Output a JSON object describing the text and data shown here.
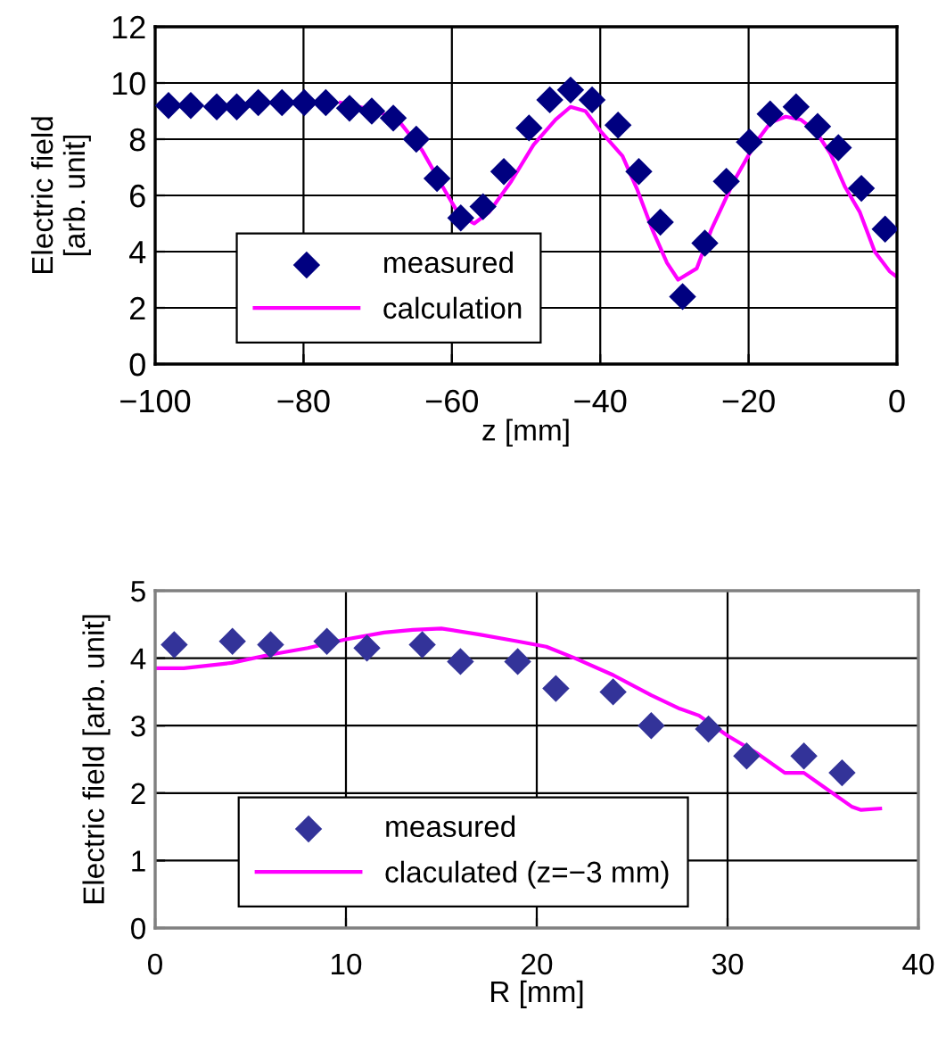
{
  "chart_data": [
    {
      "type": "scatter",
      "xlabel": "z [mm]",
      "ylabel": "Electric field\n[arb. unit]",
      "xlim": [
        -100,
        0
      ],
      "xticks": [
        -100,
        -80,
        -60,
        -40,
        -20,
        0
      ],
      "ylim": [
        0,
        12
      ],
      "yticks": [
        0,
        2,
        4,
        6,
        8,
        10,
        12
      ],
      "grid": true,
      "legend": "bottom left",
      "series": [
        {
          "name": "measured",
          "marker": "diamond",
          "color": "#000080",
          "x": [
            -98.2,
            -95.2,
            -91.7,
            -89.0,
            -86.1,
            -82.9,
            -79.9,
            -77.0,
            -73.8,
            -70.8,
            -67.9,
            -64.8,
            -62.0,
            -58.8,
            -55.8,
            -53.0,
            -49.6,
            -46.8,
            -44.0,
            -41.1,
            -37.6,
            -34.8,
            -31.9,
            -28.9,
            -25.9,
            -23.0,
            -19.9,
            -17.1,
            -13.6,
            -10.7,
            -7.9,
            -4.8,
            -1.6
          ],
          "values": [
            9.2,
            9.2,
            9.15,
            9.15,
            9.3,
            9.3,
            9.3,
            9.3,
            9.1,
            9.0,
            8.75,
            8.0,
            6.6,
            5.2,
            5.6,
            6.85,
            8.4,
            9.4,
            9.75,
            9.4,
            8.5,
            6.85,
            5.05,
            2.4,
            4.3,
            6.5,
            7.9,
            8.9,
            9.15,
            8.45,
            7.7,
            6.25,
            4.8
          ]
        },
        {
          "name": "calculation",
          "type": "line",
          "marker": "none",
          "color": "#ff00ff",
          "x": [
            -75,
            -70,
            -67,
            -64,
            -61,
            -59,
            -57,
            -55,
            -52,
            -49,
            -46,
            -44,
            -42,
            -40,
            -37,
            -35,
            -33,
            -31,
            -29.5,
            -27,
            -25,
            -22,
            -19,
            -17,
            -15,
            -13,
            -11,
            -9,
            -7,
            -5,
            -3,
            -1,
            0
          ],
          "values": [
            9.3,
            9.0,
            8.6,
            7.6,
            6.2,
            5.3,
            5.0,
            5.4,
            6.5,
            7.8,
            8.7,
            9.15,
            9.0,
            8.3,
            7.4,
            6.2,
            4.8,
            3.6,
            3.0,
            3.4,
            4.8,
            6.5,
            7.9,
            8.6,
            8.8,
            8.7,
            8.3,
            7.5,
            6.3,
            5.4,
            4.0,
            3.3,
            3.1
          ]
        }
      ]
    },
    {
      "type": "scatter",
      "xlabel": "R [mm]",
      "ylabel": "Electric field [arb. unit]",
      "xlim": [
        0,
        40
      ],
      "xticks": [
        0,
        10,
        20,
        30,
        40
      ],
      "ylim": [
        0,
        5
      ],
      "yticks": [
        0,
        1,
        2,
        3,
        4,
        5
      ],
      "grid": true,
      "legend": "bottom left",
      "series": [
        {
          "name": "measured",
          "marker": "diamond",
          "color": "#333399",
          "x": [
            1.0,
            4.05,
            6.05,
            9.0,
            11.1,
            14.0,
            16.0,
            19.0,
            21.0,
            24.0,
            26.0,
            29.0,
            31.0,
            34.0,
            36.0
          ],
          "values": [
            4.2,
            4.25,
            4.2,
            4.25,
            4.15,
            4.2,
            3.95,
            3.95,
            3.55,
            3.5,
            3.0,
            2.95,
            2.55,
            2.55,
            2.3
          ]
        },
        {
          "name": "claculated (z=−3 mm)",
          "type": "line",
          "marker": "none",
          "color": "#ff00ff",
          "x": [
            0,
            1.5,
            4,
            6,
            8,
            10,
            12,
            13.5,
            15,
            17,
            19,
            20.5,
            22,
            24,
            26,
            27.5,
            28.5,
            30,
            31.5,
            33,
            34,
            35,
            36.5,
            37,
            38
          ],
          "values": [
            3.85,
            3.85,
            3.93,
            4.05,
            4.15,
            4.28,
            4.38,
            4.42,
            4.44,
            4.35,
            4.25,
            4.17,
            4.0,
            3.75,
            3.45,
            3.25,
            3.15,
            2.85,
            2.6,
            2.3,
            2.3,
            2.1,
            1.8,
            1.75,
            1.77
          ]
        }
      ]
    }
  ]
}
